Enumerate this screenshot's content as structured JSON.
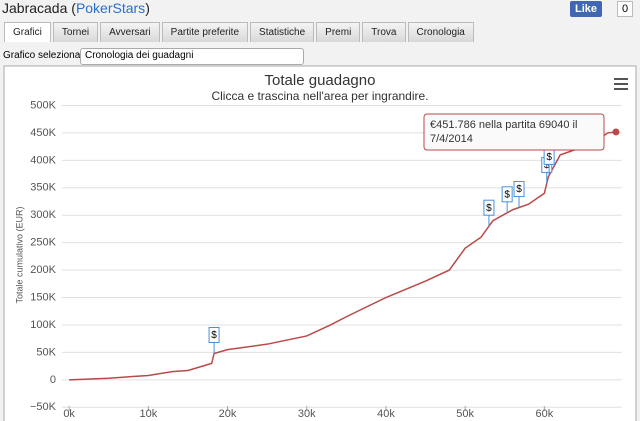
{
  "header": {
    "title_prefix": "Jabracada (",
    "site": "PokerStars",
    "title_suffix": ")",
    "like": "Like",
    "like_count": "0"
  },
  "tabs": [
    "Grafici",
    "Tornei",
    "Avversari",
    "Partite preferite",
    "Statistiche",
    "Premi",
    "Trova",
    "Cronologia"
  ],
  "selector": {
    "label": "Grafico selezionato",
    "value": "Cronologia dei guadagni"
  },
  "chart_data": {
    "type": "line",
    "title": "Totale guadagno",
    "subtitle": "Clicca e trascina nell'area per ingrandire.",
    "y_label": "Totale cumulativo (EUR)",
    "x": [
      0,
      5000,
      10000,
      13000,
      15000,
      18000,
      18300,
      20000,
      25000,
      30000,
      33000,
      35000,
      40000,
      45000,
      48000,
      50000,
      52000,
      53500,
      56000,
      58000,
      60000,
      60500,
      62000,
      64000,
      66000,
      68000,
      69040
    ],
    "series": [
      {
        "name": "Totale guadagno",
        "color": "#b94a48",
        "values": [
          0,
          3000,
          8000,
          15000,
          17000,
          30000,
          48000,
          55000,
          65000,
          80000,
          100000,
          115000,
          150000,
          180000,
          200000,
          240000,
          260000,
          290000,
          310000,
          320000,
          340000,
          370000,
          410000,
          420000,
          430000,
          450000,
          451786
        ]
      }
    ],
    "xlim": [
      -900,
      69800
    ],
    "ylim": [
      -75000,
      510000
    ],
    "xticks": [
      {
        "value": 0,
        "label": "0k"
      },
      {
        "value": 10000,
        "label": "10k"
      },
      {
        "value": 20000,
        "label": "20k"
      },
      {
        "value": 30000,
        "label": "30k"
      },
      {
        "value": 40000,
        "label": "40k"
      },
      {
        "value": 50000,
        "label": "50k"
      },
      {
        "value": 60000,
        "label": "60k"
      }
    ],
    "yticks": [
      {
        "value": -50000,
        "label": "−50K"
      },
      {
        "value": 0,
        "label": "0"
      },
      {
        "value": 50000,
        "label": "50K"
      },
      {
        "value": 100000,
        "label": "100K"
      },
      {
        "value": 150000,
        "label": "150K"
      },
      {
        "value": 200000,
        "label": "200K"
      },
      {
        "value": 250000,
        "label": "250K"
      },
      {
        "value": 300000,
        "label": "300K"
      },
      {
        "value": 350000,
        "label": "350K"
      },
      {
        "value": 400000,
        "label": "400K"
      },
      {
        "value": 450000,
        "label": "450K"
      },
      {
        "value": 500000,
        "label": "500K"
      }
    ],
    "grid": true,
    "flags": [
      {
        "x": 18300,
        "text": "$"
      },
      {
        "x": 53000,
        "text": "$"
      },
      {
        "x": 55300,
        "text": "$"
      },
      {
        "x": 56800,
        "text": "$"
      },
      {
        "x": 60300,
        "text": "$"
      },
      {
        "x": 60600,
        "text": "$"
      }
    ],
    "tooltip": [
      "€451.786 nella partita 69040 il",
      "7/4/2014"
    ]
  }
}
